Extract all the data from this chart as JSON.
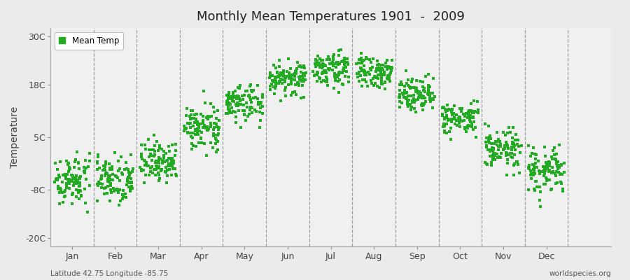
{
  "title": "Monthly Mean Temperatures 1901  -  2009",
  "ylabel": "Temperature",
  "subtitle_left": "Latitude 42.75 Longitude -85.75",
  "subtitle_right": "worldspecies.org",
  "legend_label": "Mean Temp",
  "dot_color": "#22AA22",
  "background_color": "#EBEBEB",
  "plot_bg_color": "#F0F0F0",
  "yticks": [
    -20,
    -8,
    5,
    18,
    30
  ],
  "ytick_labels": [
    "-20C",
    "-8C",
    "5C",
    "18C",
    "30C"
  ],
  "months": [
    "Jan",
    "Feb",
    "Mar",
    "Apr",
    "May",
    "Jun",
    "Jul",
    "Aug",
    "Sep",
    "Oct",
    "Nov",
    "Dec"
  ],
  "ylim": [
    -22,
    32
  ],
  "xlim": [
    0.0,
    13.0
  ],
  "n_years": 109,
  "mean_temps": [
    -5.5,
    -5.0,
    -1.0,
    7.5,
    13.5,
    19.5,
    22.0,
    21.0,
    16.0,
    9.5,
    2.0,
    -3.5
  ],
  "std_temps": [
    3.0,
    3.0,
    2.5,
    2.5,
    2.5,
    2.0,
    2.0,
    2.0,
    2.0,
    2.0,
    2.5,
    3.0
  ]
}
